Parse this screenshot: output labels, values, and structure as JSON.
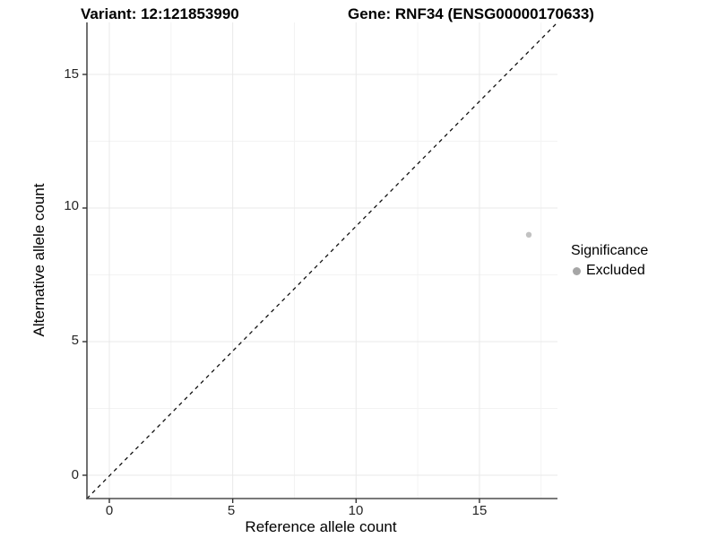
{
  "titles": {
    "variant": "Variant: 12:121853990",
    "gene": "Gene: RNF34 (ENSG00000170633)"
  },
  "axes": {
    "x": {
      "label": "Reference allele count"
    },
    "y": {
      "label": "Alternative allele count"
    }
  },
  "legend": {
    "title": "Significance",
    "items": [
      {
        "label": "Excluded",
        "color": "#a6a6a6"
      }
    ]
  },
  "colors": {
    "background": "#ffffff",
    "grid_major": "#e9e9e9",
    "grid_minor": "#f3f3f3",
    "axis_line": "#4d4d4d",
    "tick_mark": "#333333",
    "identity_line": "#111111",
    "point": "#c2c2c2"
  },
  "chart_data": {
    "type": "scatter",
    "title_left": "Variant: 12:121853990",
    "title_right": "Gene: RNF34 (ENSG00000170633)",
    "xlabel": "Reference allele count",
    "ylabel": "Alternative allele count",
    "x_ticks": [
      0,
      5,
      10,
      15
    ],
    "y_ticks": [
      0,
      5,
      10,
      15
    ],
    "xlim": [
      -0.9,
      18.2
    ],
    "ylim": [
      -0.9,
      17.0
    ],
    "grid": "on",
    "legend_position": "right",
    "reference_line": {
      "kind": "identity",
      "style": "dashed",
      "slope": 1,
      "intercept": 0
    },
    "series": [
      {
        "name": "Excluded",
        "color": "#c2c2c2",
        "points": [
          {
            "x": 17,
            "y": 9
          }
        ]
      }
    ]
  }
}
